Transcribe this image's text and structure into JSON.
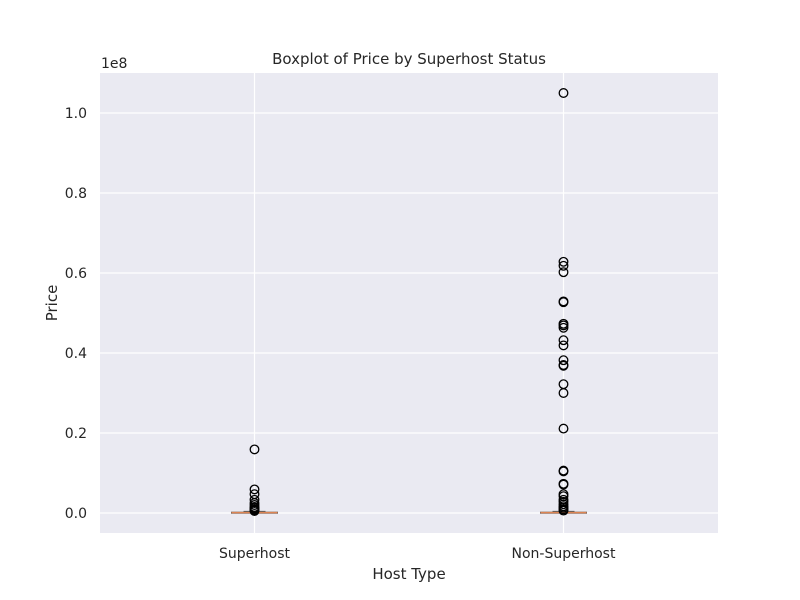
{
  "chart_data": {
    "type": "boxplot",
    "title": "Boxplot of Price by Superhost Status",
    "xlabel": "Host Type",
    "ylabel": "Price",
    "y_offset_label": "1e8",
    "ylim": [
      -0.05,
      1.1
    ],
    "y_ticks": [
      0.0,
      0.2,
      0.4,
      0.6,
      0.8,
      1.0
    ],
    "y_tick_labels": [
      "0.0",
      "0.2",
      "0.4",
      "0.6",
      "0.8",
      "1.0"
    ],
    "grid": true,
    "categories": [
      "Superhost",
      "Non-Superhost"
    ],
    "series": [
      {
        "category": "Superhost",
        "q1": 0.0,
        "median": 0.001,
        "q3": 0.002,
        "whisker_low": 0.0,
        "whisker_high": 0.004,
        "outliers": [
          0.159,
          0.059,
          0.047,
          0.033,
          0.025,
          0.02,
          0.015,
          0.012,
          0.009,
          0.007,
          0.005
        ]
      },
      {
        "category": "Non-Superhost",
        "q1": 0.0,
        "median": 0.001,
        "q3": 0.002,
        "whisker_low": 0.0,
        "whisker_high": 0.004,
        "outliers": [
          1.05,
          0.628,
          0.618,
          0.602,
          0.529,
          0.527,
          0.473,
          0.469,
          0.463,
          0.432,
          0.419,
          0.382,
          0.37,
          0.368,
          0.322,
          0.3,
          0.211,
          0.106,
          0.104,
          0.073,
          0.071,
          0.047,
          0.042,
          0.033,
          0.028,
          0.022,
          0.017,
          0.013,
          0.009,
          0.006
        ]
      }
    ]
  }
}
